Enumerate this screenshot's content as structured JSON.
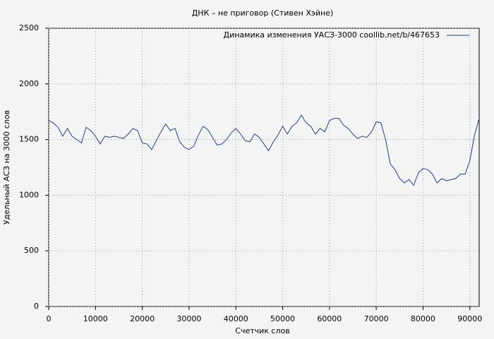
{
  "chart_data": {
    "type": "line",
    "title": "ДНК – не приговор (Стивен Хэйне)",
    "x_label": "Счетчик слов",
    "y_label": "Удельный АСЗ на 3000 слов",
    "x": [
      0,
      1000,
      2000,
      3000,
      4000,
      5000,
      6000,
      7000,
      8000,
      9000,
      10000,
      11000,
      12000,
      13000,
      14000,
      15000,
      16000,
      17000,
      18000,
      19000,
      20000,
      21000,
      22000,
      23000,
      24000,
      25000,
      26000,
      27000,
      28000,
      29000,
      30000,
      31000,
      32000,
      33000,
      34000,
      35000,
      36000,
      37000,
      38000,
      39000,
      40000,
      41000,
      42000,
      43000,
      44000,
      45000,
      46000,
      47000,
      48000,
      49000,
      50000,
      51000,
      52000,
      53000,
      54000,
      55000,
      56000,
      57000,
      58000,
      59000,
      60000,
      61000,
      62000,
      63000,
      64000,
      65000,
      66000,
      67000,
      68000,
      69000,
      70000,
      71000,
      72000,
      73000,
      74000,
      75000,
      76000,
      77000,
      78000,
      79000,
      80000,
      81000,
      82000,
      83000,
      84000,
      85000,
      86000,
      87000,
      88000,
      89000,
      90000,
      91000,
      92000
    ],
    "series": [
      {
        "name": "Динамика изменения УАСЗ-3000  coollib.net/b/467653",
        "color": "#1f3f99",
        "values": [
          1670,
          1650,
          1610,
          1530,
          1600,
          1530,
          1500,
          1470,
          1610,
          1580,
          1530,
          1460,
          1530,
          1520,
          1530,
          1520,
          1510,
          1550,
          1600,
          1580,
          1470,
          1460,
          1410,
          1490,
          1570,
          1640,
          1580,
          1600,
          1480,
          1430,
          1410,
          1440,
          1540,
          1620,
          1590,
          1520,
          1450,
          1460,
          1500,
          1560,
          1600,
          1550,
          1490,
          1480,
          1550,
          1520,
          1460,
          1400,
          1480,
          1540,
          1620,
          1550,
          1620,
          1650,
          1720,
          1650,
          1620,
          1550,
          1600,
          1570,
          1670,
          1690,
          1690,
          1630,
          1600,
          1550,
          1510,
          1530,
          1520,
          1570,
          1660,
          1650,
          1500,
          1280,
          1230,
          1150,
          1110,
          1140,
          1090,
          1200,
          1240,
          1230,
          1190,
          1110,
          1150,
          1130,
          1140,
          1150,
          1190,
          1190,
          1310,
          1540,
          1690
        ]
      }
    ],
    "xlim": [
      0,
      92000
    ],
    "ylim": [
      0,
      2500
    ],
    "xticks": [
      0,
      10000,
      20000,
      30000,
      40000,
      50000,
      60000,
      70000,
      80000,
      90000
    ],
    "yticks": [
      0,
      500,
      1000,
      1500,
      2000,
      2500
    ],
    "grid": true,
    "legend": "top-right"
  }
}
